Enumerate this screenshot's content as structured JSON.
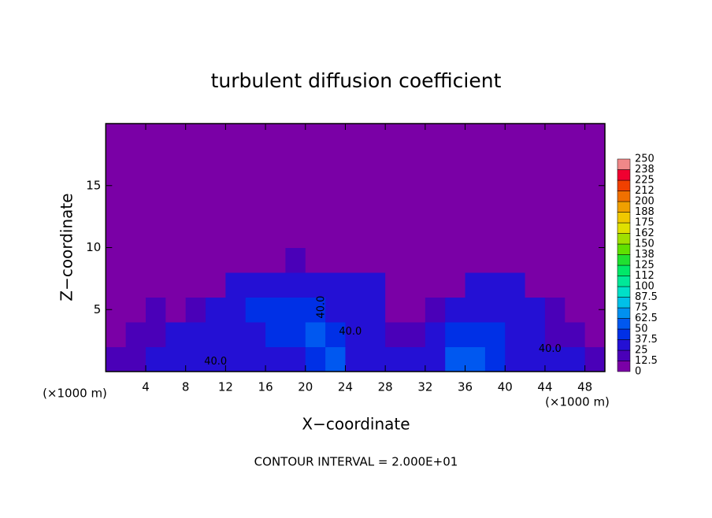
{
  "chart_data": {
    "type": "heatmap",
    "title": "turbulent diffusion coefficient",
    "x_label": "X−coordinate",
    "y_label": "Z−coordinate",
    "x_unit": "(×1000 m)",
    "y_unit": "(×1000 m)",
    "note": "CONTOUR INTERVAL = 2.000E+01",
    "xlim": [
      0,
      50
    ],
    "ylim": [
      0,
      20
    ],
    "xticks": [
      4,
      8,
      12,
      16,
      20,
      24,
      28,
      32,
      36,
      40,
      44,
      48
    ],
    "yticks": [
      5,
      10,
      15
    ],
    "xbins": [
      0,
      2,
      4,
      6,
      8,
      10,
      12,
      14,
      16,
      18,
      20,
      22,
      24,
      26,
      28,
      30,
      32,
      34,
      36,
      38,
      40,
      42,
      44,
      46,
      48,
      50
    ],
    "ybins": [
      0,
      2,
      4,
      6,
      8,
      10,
      12,
      14,
      16,
      18,
      20
    ],
    "values": [
      [
        20,
        20,
        25,
        25,
        30,
        30,
        30,
        30,
        35,
        35,
        45,
        55,
        30,
        30,
        25,
        30,
        35,
        50,
        55,
        40,
        35,
        30,
        30,
        25,
        20
      ],
      [
        10,
        15,
        20,
        25,
        30,
        30,
        35,
        35,
        40,
        45,
        50,
        40,
        35,
        30,
        20,
        15,
        30,
        40,
        45,
        40,
        35,
        30,
        20,
        15,
        10
      ],
      [
        5,
        10,
        15,
        10,
        15,
        25,
        35,
        40,
        40,
        40,
        40,
        35,
        30,
        30,
        10,
        0,
        15,
        30,
        35,
        35,
        30,
        25,
        15,
        10,
        5
      ],
      [
        0,
        0,
        0,
        0,
        0,
        0,
        25,
        30,
        30,
        30,
        30,
        30,
        25,
        25,
        0,
        0,
        0,
        0,
        25,
        30,
        25,
        10,
        0,
        0,
        0
      ],
      [
        0,
        0,
        0,
        0,
        0,
        0,
        0,
        0,
        5,
        15,
        10,
        0,
        0,
        0,
        0,
        0,
        0,
        0,
        0,
        0,
        0,
        0,
        0,
        0,
        0
      ],
      [
        0,
        0,
        0,
        0,
        0,
        0,
        0,
        0,
        0,
        0,
        0,
        0,
        0,
        0,
        0,
        0,
        0,
        0,
        0,
        0,
        0,
        0,
        0,
        0,
        0
      ],
      [
        0,
        0,
        0,
        0,
        0,
        0,
        0,
        0,
        0,
        0,
        0,
        0,
        0,
        0,
        0,
        0,
        0,
        0,
        0,
        0,
        0,
        0,
        0,
        0,
        0
      ],
      [
        0,
        0,
        0,
        0,
        0,
        0,
        0,
        0,
        0,
        0,
        0,
        0,
        0,
        0,
        0,
        0,
        0,
        0,
        0,
        0,
        0,
        0,
        0,
        0,
        0
      ],
      [
        0,
        0,
        0,
        0,
        0,
        0,
        0,
        0,
        0,
        0,
        0,
        0,
        0,
        0,
        0,
        0,
        0,
        0,
        0,
        0,
        0,
        0,
        0,
        0,
        0
      ],
      [
        0,
        0,
        0,
        0,
        0,
        0,
        0,
        0,
        0,
        0,
        0,
        0,
        0,
        0,
        0,
        0,
        0,
        0,
        0,
        0,
        0,
        0,
        0,
        0,
        0
      ]
    ],
    "contour_labels": [
      "40.0",
      "40.0",
      "40.0",
      "40.0"
    ],
    "colorbar": {
      "levels": [
        0,
        12.5,
        25,
        37.5,
        50,
        62.5,
        75,
        87.5,
        100,
        {
          "value": 112.5,
          "label": "112"
        },
        125,
        {
          "value": 137.5,
          "label": "138"
        },
        150,
        {
          "value": 162.5,
          "label": "162"
        },
        175,
        {
          "value": 187.5,
          "label": "188"
        },
        200,
        {
          "value": 212.5,
          "label": "212"
        },
        225,
        {
          "value": 237.5,
          "label": "238"
        },
        250
      ],
      "colors": [
        "#7a00a6",
        "#4a00b8",
        "#2410d4",
        "#0030e6",
        "#0058f0",
        "#0090f0",
        "#00c0e8",
        "#00e0c8",
        "#00e898",
        "#00e868",
        "#20e030",
        "#60e000",
        "#a0e000",
        "#e0e000",
        "#f0c800",
        "#f0a000",
        "#f07000",
        "#f04000",
        "#f00030",
        "#f08888"
      ]
    }
  }
}
